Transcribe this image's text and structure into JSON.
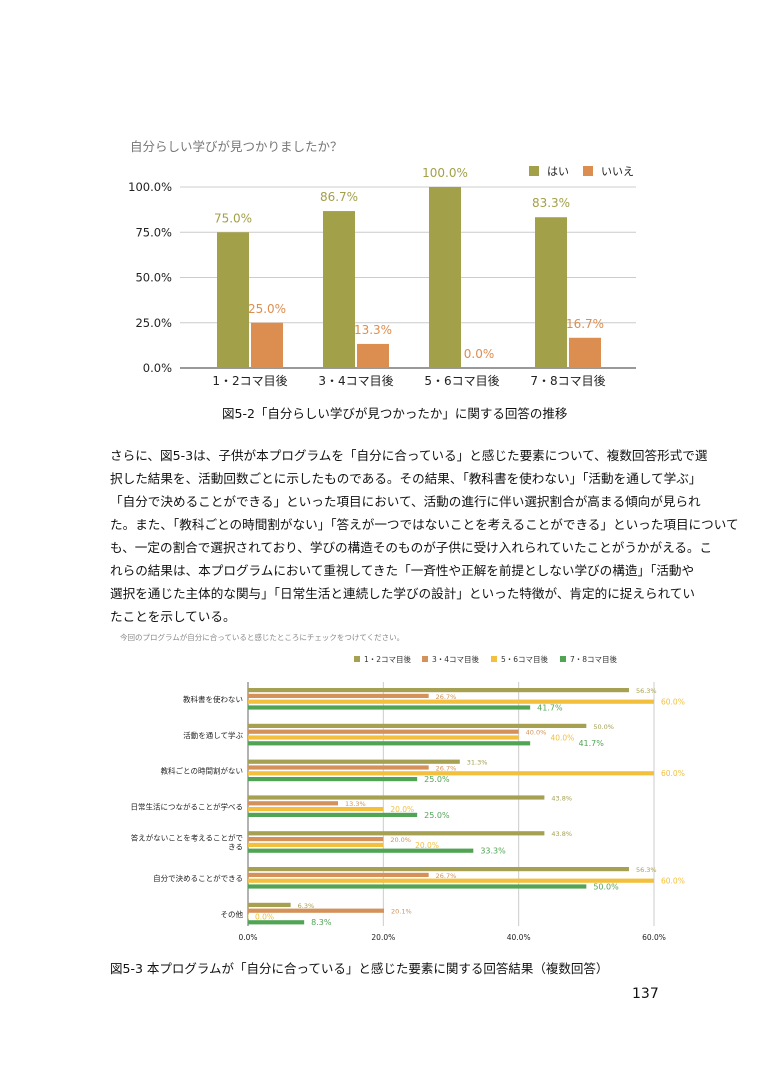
{
  "chart_data": [
    {
      "type": "bar",
      "title": "自分らしい学びが見つかりましたか？",
      "categories": [
        "1・2コマ目後",
        "3・4コマ目後",
        "5・6コマ目後",
        "7・8コマ目後"
      ],
      "series": [
        {
          "name": "はい",
          "color": "#a3a04a",
          "values": [
            75.0,
            86.7,
            100.0,
            83.3
          ],
          "labels": [
            "75.0%",
            "86.7%",
            "100.0%",
            "83.3%"
          ]
        },
        {
          "name": "いいえ",
          "color": "#dc8e50",
          "values": [
            25.0,
            13.3,
            0.0,
            16.7
          ],
          "labels": [
            "25.0%",
            "13.3%",
            "0.0%",
            "16.7%"
          ]
        }
      ],
      "yticks": [
        "0.0%",
        "25.0%",
        "50.0%",
        "75.0%",
        "100.0%"
      ],
      "ylim": [
        0,
        100
      ],
      "legend": "top-right",
      "grid": true
    },
    {
      "type": "bar",
      "orientation": "horizontal",
      "title": "今回のプログラムが自分に合っていると感じたところにチェックをつけてください。",
      "categories": [
        "教科書を使わない",
        "活動を通して学ぶ",
        "教科ごとの時間割がない",
        "日常生活につながることが学べる",
        "答えがないことを考えることができる",
        "自分で決めることができる",
        "その他"
      ],
      "category_lines": [
        [
          "教科書を使わない"
        ],
        [
          "活動を通して学ぶ"
        ],
        [
          "教科ごとの時間割がない"
        ],
        [
          "日常生活につながることが学べる"
        ],
        [
          "答えがないことを考えることがで",
          "きる"
        ],
        [
          "自分で決めることができる"
        ],
        [
          "その他"
        ]
      ],
      "series": [
        {
          "name": "1・2コマ目後",
          "color": "#a5a052",
          "values": [
            56.3,
            50.0,
            31.3,
            43.8,
            43.8,
            56.3,
            6.3
          ]
        },
        {
          "name": "3・4コマ目後",
          "color": "#d4925a",
          "values": [
            26.7,
            40.0,
            26.7,
            13.3,
            20.0,
            26.7,
            20.1
          ]
        },
        {
          "name": "5・6コマ目後",
          "color": "#f3c03e",
          "values": [
            60.0,
            40.0,
            60.0,
            20.0,
            20.0,
            60.0,
            0.0
          ]
        },
        {
          "name": "7・8コマ目後",
          "color": "#52a455",
          "values": [
            41.7,
            41.7,
            25.0,
            25.0,
            33.3,
            50.0,
            8.3
          ]
        }
      ],
      "xticks": [
        "0.0%",
        "20.0%",
        "40.0%",
        "60.0%"
      ],
      "xlim": [
        0,
        60
      ],
      "legend": "top-right",
      "grid": true
    }
  ],
  "captions": {
    "fig52": "図5-2「自分らしい学びが見つかったか」に関する回答の推移",
    "fig53": "図5-3 本プログラムが「自分に合っている」と感じた要素に関する回答結果（複数回答）"
  },
  "paragraph": [
    "さらに、図5-3は、子供が本プログラムを「自分に合っている」と感じた要素について、複数回答形式で選",
    "択した結果を、活動回数ごとに示したものである。その結果、「教科書を使わない」「活動を通して学ぶ」",
    "「自分で決めることができる」といった項目において、活動の進行に伴い選択割合が高まる傾向が見られ",
    "た。また、「教科ごとの時間割がない」「答えが一つではないことを考えることができる」といった項目について",
    "も、一定の割合で選択されており、学びの構造そのものが子供に受け入れられていたことがうかがえる。こ",
    "れらの結果は、本プログラムにおいて重視してきた「一斉性や正解を前提としない学びの構造」「活動や",
    "選択を通じた主体的な関与」「日常生活と連続した学びの設計」といった特徴が、肯定的に捉えられてい",
    "たことを示している。"
  ],
  "page_number": "137"
}
